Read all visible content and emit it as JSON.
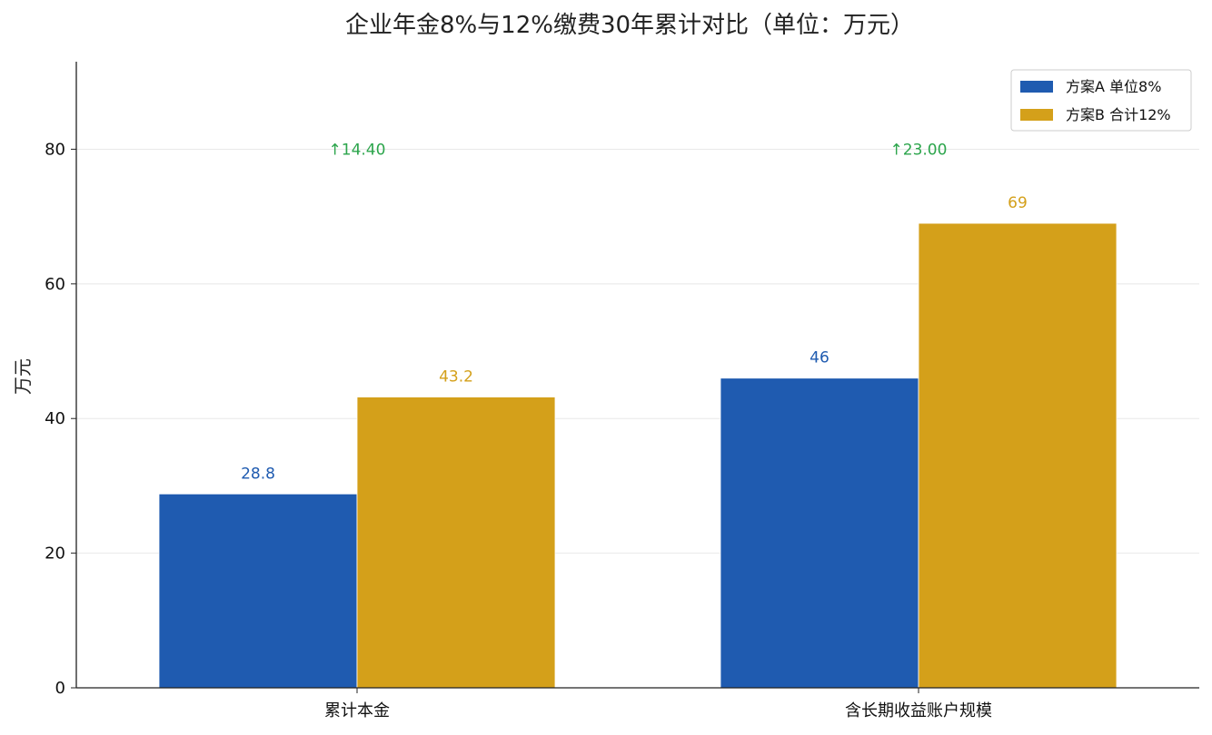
{
  "chart_data": {
    "type": "bar",
    "title": "企业年金8%与12%缴费30年累计对比（单位：万元）",
    "xlabel": "",
    "ylabel": "万元",
    "categories": [
      "累计本金",
      "含长期收益账户规模"
    ],
    "series": [
      {
        "name": "方案A 单位8%",
        "values": [
          28.8,
          46
        ],
        "value_labels": [
          "28.8",
          "46"
        ],
        "color": "#1f5bb0"
      },
      {
        "name": "方案B 合计12%",
        "values": [
          43.2,
          69
        ],
        "value_labels": [
          "43.2",
          "69"
        ],
        "color": "#d4a01a"
      }
    ],
    "annotations": [
      {
        "category": "累计本金",
        "text": "↑14.40",
        "y": 80
      },
      {
        "category": "含长期收益账户规模",
        "text": "↑23.00",
        "y": 80
      }
    ],
    "annotation_color": "#2ca54c",
    "ylim": [
      0,
      93
    ],
    "yticks": [
      0,
      20,
      40,
      60,
      80
    ],
    "ytick_labels": [
      "0",
      "20",
      "40",
      "60",
      "80"
    ],
    "grid": true,
    "legend_position": "top-right"
  }
}
